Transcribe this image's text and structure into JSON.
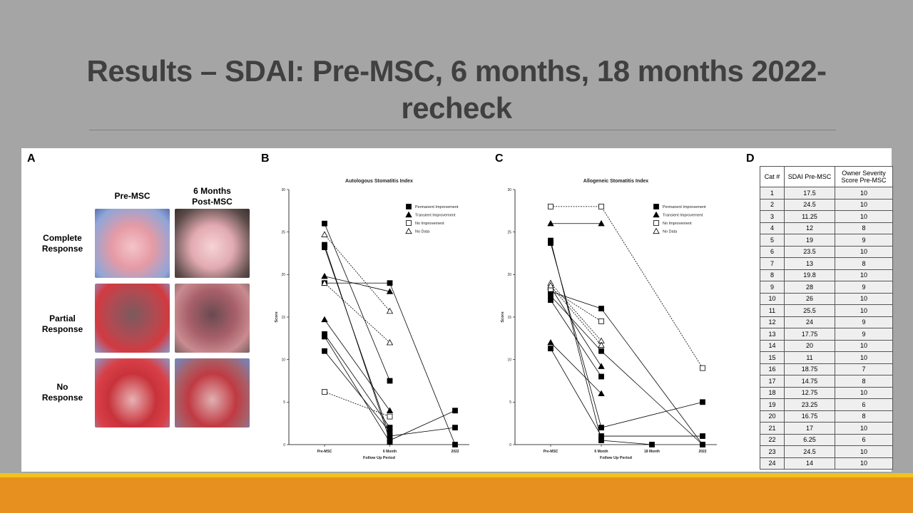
{
  "title": "Results – SDAI: Pre-MSC, 6 months, 18 months 2022-recheck",
  "panels": {
    "a": "A",
    "b": "B",
    "c": "C",
    "d": "D"
  },
  "photos": {
    "columns": [
      "Pre-MSC",
      "6 Months Post-MSC"
    ],
    "rows": [
      "Complete Response",
      "Partial Response",
      "No Response"
    ]
  },
  "chart_data": [
    {
      "type": "line",
      "title": "Autologous Stomatitis Index",
      "x_label": "Follow Up Period",
      "y_label": "Score",
      "categories": [
        "Pre-MSC",
        "6 Month",
        "2022"
      ],
      "ylim": [
        0,
        30
      ],
      "yticks": [
        0,
        5,
        10,
        15,
        20,
        25,
        30
      ],
      "legend": "upper right",
      "series": [
        {
          "name": "Permanent Improvement",
          "color": "#000000",
          "marker": "square",
          "filled": true,
          "dashed": false,
          "lines": [
            {
              "x": [
                "Pre-MSC",
                "6 Month",
                "2022"
              ],
              "values": [
                19,
                19,
                0
              ]
            },
            {
              "x": [
                "Pre-MSC",
                "6 Month"
              ],
              "values": [
                26,
                7.5
              ]
            },
            {
              "x": [
                "Pre-MSC",
                "6 Month",
                "2022"
              ],
              "values": [
                23.5,
                0.5,
                4
              ]
            },
            {
              "x": [
                "Pre-MSC",
                "6 Month",
                "2022"
              ],
              "values": [
                23.2,
                1,
                2
              ]
            },
            {
              "x": [
                "Pre-MSC",
                "6 Month"
              ],
              "values": [
                13,
                2
              ]
            },
            {
              "x": [
                "Pre-MSC",
                "6 Month"
              ],
              "values": [
                12.7,
                0.3
              ]
            },
            {
              "x": [
                "Pre-MSC",
                "6 Month"
              ],
              "values": [
                11,
                1.5
              ]
            }
          ]
        },
        {
          "name": "Transient Improvement",
          "color": "#000000",
          "marker": "triangle",
          "filled": true,
          "dashed": false,
          "lines": [
            {
              "x": [
                "Pre-MSC",
                "6 Month"
              ],
              "values": [
                19.8,
                18
              ]
            },
            {
              "x": [
                "Pre-MSC",
                "6 Month"
              ],
              "values": [
                14.7,
                4
              ]
            }
          ]
        },
        {
          "name": "No Improvement",
          "color": "#000000",
          "marker": "square",
          "filled": false,
          "dashed": true,
          "lines": [
            {
              "x": [
                "Pre-MSC",
                "6 Month"
              ],
              "values": [
                6.2,
                3.3
              ]
            }
          ]
        },
        {
          "name": "No Data",
          "color": "#000000",
          "marker": "triangle",
          "filled": false,
          "dashed": true,
          "lines": [
            {
              "x": [
                "Pre-MSC",
                "6 Month"
              ],
              "values": [
                24.7,
                15.7
              ]
            },
            {
              "x": [
                "Pre-MSC",
                "6 Month"
              ],
              "values": [
                19,
                12
              ]
            }
          ]
        }
      ]
    },
    {
      "type": "line",
      "title": "Allogeneic Stomatitis Index",
      "x_label": "Follow Up Period",
      "y_label": "Score",
      "categories": [
        "Pre-MSC",
        "6 Month",
        "18 Month",
        "2022"
      ],
      "ylim": [
        0,
        30
      ],
      "yticks": [
        0,
        5,
        10,
        15,
        20,
        25,
        30
      ],
      "legend": "upper right",
      "series": [
        {
          "name": "Permanent Improvement",
          "color": "#000000",
          "marker": "square",
          "filled": true,
          "dashed": false,
          "lines": [
            {
              "x": [
                "Pre-MSC",
                "6 Month",
                "18 Month"
              ],
              "values": [
                24,
                0.5,
                0
              ]
            },
            {
              "x": [
                "Pre-MSC",
                "6 Month",
                "2022"
              ],
              "values": [
                23.7,
                2,
                5
              ]
            },
            {
              "x": [
                "Pre-MSC",
                "6 Month",
                "2022"
              ],
              "values": [
                18,
                16,
                0
              ]
            },
            {
              "x": [
                "Pre-MSC",
                "6 Month",
                "2022"
              ],
              "values": [
                17.5,
                11,
                0
              ]
            },
            {
              "x": [
                "Pre-MSC",
                "6 Month"
              ],
              "values": [
                17,
                8
              ]
            },
            {
              "x": [
                "Pre-MSC",
                "6 Month",
                "2022"
              ],
              "values": [
                11.3,
                1,
                1
              ]
            }
          ]
        },
        {
          "name": "Transient Improvement",
          "color": "#000000",
          "marker": "triangle",
          "filled": true,
          "dashed": false,
          "lines": [
            {
              "x": [
                "Pre-MSC",
                "6 Month"
              ],
              "values": [
                26,
                26
              ]
            },
            {
              "x": [
                "Pre-MSC",
                "6 Month"
              ],
              "values": [
                12,
                6
              ]
            },
            {
              "x": [
                "Pre-MSC",
                "6 Month"
              ],
              "values": [
                18.5,
                9.2
              ]
            }
          ]
        },
        {
          "name": "No Improvement",
          "color": "#000000",
          "marker": "square",
          "filled": false,
          "dashed": true,
          "lines": [
            {
              "x": [
                "Pre-MSC",
                "6 Month",
                "2022"
              ],
              "values": [
                28,
                28,
                9
              ]
            },
            {
              "x": [
                "Pre-MSC",
                "6 Month"
              ],
              "values": [
                18.3,
                14.5
              ]
            }
          ]
        },
        {
          "name": "No Data",
          "color": "#000000",
          "marker": "triangle",
          "filled": false,
          "dashed": true,
          "lines": [
            {
              "x": [
                "Pre-MSC",
                "6 Month"
              ],
              "values": [
                19,
                12.2
              ]
            },
            {
              "x": [
                "Pre-MSC",
                "6 Month"
              ],
              "values": [
                18.7,
                11.7
              ]
            }
          ]
        }
      ]
    }
  ],
  "table": {
    "header": [
      "Cat #",
      "SDAI Pre-MSC",
      "Owner Severity Score Pre-MSC"
    ],
    "rows": [
      [
        1,
        17.5,
        10
      ],
      [
        2,
        24.5,
        10
      ],
      [
        3,
        11.25,
        10
      ],
      [
        4,
        12,
        8
      ],
      [
        5,
        19,
        9
      ],
      [
        6,
        23.5,
        10
      ],
      [
        7,
        13,
        8
      ],
      [
        8,
        19.8,
        10
      ],
      [
        9,
        28,
        9
      ],
      [
        10,
        26,
        10
      ],
      [
        11,
        25.5,
        10
      ],
      [
        12,
        24,
        9
      ],
      [
        13,
        17.75,
        9
      ],
      [
        14,
        20,
        10
      ],
      [
        15,
        11,
        10
      ],
      [
        16,
        18.75,
        7
      ],
      [
        17,
        14.75,
        8
      ],
      [
        18,
        12.75,
        10
      ],
      [
        19,
        23.25,
        6
      ],
      [
        20,
        16.75,
        8
      ],
      [
        21,
        17,
        10
      ],
      [
        22,
        6.25,
        6
      ],
      [
        23,
        24.5,
        10
      ],
      [
        24,
        14,
        10
      ]
    ]
  }
}
